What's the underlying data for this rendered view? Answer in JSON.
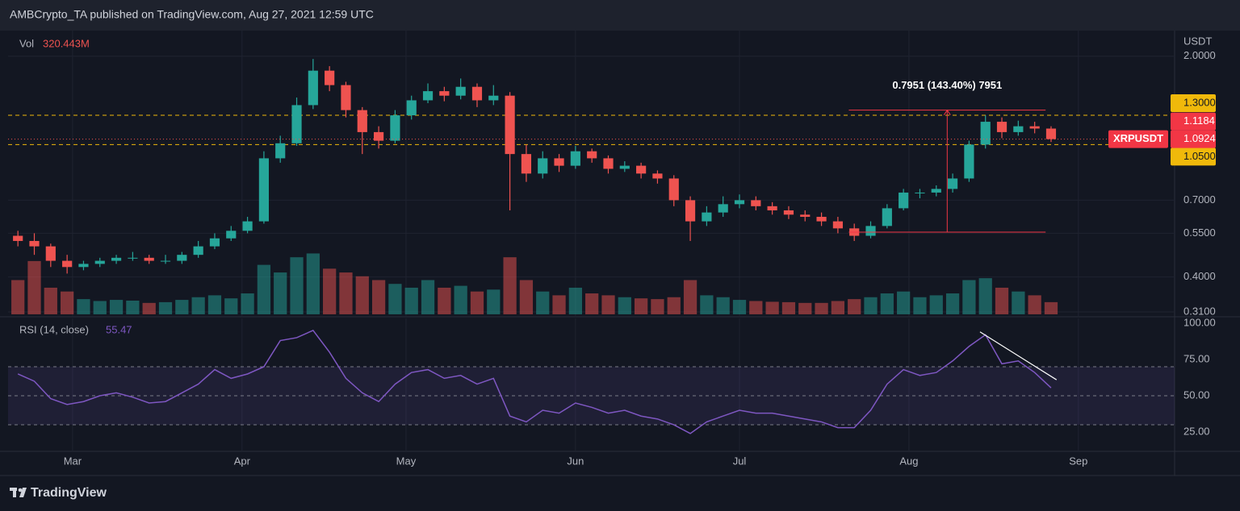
{
  "header": {
    "text": "AMBCrypto_TA published on TradingView.com, Aug 27, 2021 12:59 UTC"
  },
  "footer": {
    "brand": "TradingView"
  },
  "chart_data": {
    "type": "candlestick",
    "symbol": "XRPUSDT",
    "unit": "USDT",
    "log_scale": true,
    "grid": true,
    "x": [
      1,
      4,
      7,
      10,
      13,
      16,
      19,
      22,
      25,
      28,
      31,
      34,
      37,
      40,
      43,
      46,
      49,
      52,
      55,
      58,
      61,
      64,
      67,
      70,
      73,
      76,
      79,
      82,
      85,
      88,
      91,
      94,
      97,
      100,
      103,
      106,
      109,
      112,
      115,
      118,
      121,
      124,
      127,
      130,
      133,
      136,
      139,
      142,
      145,
      148,
      151,
      154,
      157,
      160,
      163,
      166,
      169,
      172,
      175,
      178,
      181,
      184,
      187,
      190
    ],
    "open": [
      0.54,
      0.52,
      0.5,
      0.45,
      0.43,
      0.44,
      0.45,
      0.46,
      0.46,
      0.45,
      0.45,
      0.47,
      0.5,
      0.53,
      0.56,
      0.6,
      0.95,
      1.06,
      1.4,
      1.8,
      1.62,
      1.35,
      1.15,
      1.08,
      1.3,
      1.45,
      1.55,
      1.5,
      1.6,
      1.45,
      1.5,
      0.98,
      0.85,
      0.95,
      0.9,
      1.0,
      0.95,
      0.88,
      0.9,
      0.85,
      0.82,
      0.7,
      0.6,
      0.64,
      0.68,
      0.7,
      0.67,
      0.65,
      0.63,
      0.62,
      0.6,
      0.57,
      0.54,
      0.58,
      0.66,
      0.74,
      0.74,
      0.76,
      0.82,
      1.05,
      1.24,
      1.15,
      1.2,
      1.18
    ],
    "high": [
      0.56,
      0.55,
      0.51,
      0.47,
      0.45,
      0.46,
      0.47,
      0.48,
      0.47,
      0.47,
      0.48,
      0.52,
      0.55,
      0.58,
      0.62,
      1.0,
      1.12,
      1.48,
      1.96,
      1.86,
      1.66,
      1.38,
      1.2,
      1.35,
      1.5,
      1.64,
      1.6,
      1.7,
      1.64,
      1.62,
      1.54,
      1.05,
      1.0,
      0.98,
      1.04,
      1.02,
      0.97,
      0.93,
      0.92,
      0.87,
      0.84,
      0.72,
      0.67,
      0.72,
      0.73,
      0.72,
      0.69,
      0.67,
      0.65,
      0.64,
      0.62,
      0.59,
      0.6,
      0.68,
      0.76,
      0.76,
      0.78,
      0.85,
      1.08,
      1.3,
      1.28,
      1.25,
      1.24,
      1.2
    ],
    "low": [
      0.5,
      0.47,
      0.43,
      0.41,
      0.42,
      0.43,
      0.44,
      0.45,
      0.44,
      0.44,
      0.44,
      0.46,
      0.49,
      0.52,
      0.55,
      0.59,
      0.92,
      1.04,
      1.36,
      1.55,
      1.28,
      0.98,
      1.02,
      1.06,
      1.26,
      1.42,
      1.44,
      1.46,
      1.38,
      1.4,
      0.65,
      0.8,
      0.82,
      0.86,
      0.88,
      0.92,
      0.85,
      0.86,
      0.82,
      0.79,
      0.67,
      0.52,
      0.58,
      0.62,
      0.66,
      0.65,
      0.63,
      0.61,
      0.6,
      0.58,
      0.55,
      0.52,
      0.53,
      0.57,
      0.65,
      0.71,
      0.72,
      0.74,
      0.8,
      1.02,
      1.1,
      1.12,
      1.14,
      1.07
    ],
    "close": [
      0.52,
      0.5,
      0.45,
      0.43,
      0.44,
      0.45,
      0.46,
      0.46,
      0.45,
      0.45,
      0.47,
      0.5,
      0.53,
      0.56,
      0.6,
      0.95,
      1.06,
      1.4,
      1.8,
      1.62,
      1.35,
      1.15,
      1.08,
      1.3,
      1.45,
      1.55,
      1.5,
      1.6,
      1.45,
      1.5,
      0.98,
      0.85,
      0.95,
      0.9,
      1.0,
      0.95,
      0.88,
      0.9,
      0.85,
      0.82,
      0.7,
      0.6,
      0.64,
      0.68,
      0.7,
      0.67,
      0.65,
      0.63,
      0.62,
      0.6,
      0.57,
      0.54,
      0.58,
      0.66,
      0.74,
      0.74,
      0.76,
      0.82,
      1.05,
      1.24,
      1.15,
      1.2,
      1.18,
      1.0924
    ],
    "up_color": "#26a69a",
    "down_color": "#ef5350",
    "xlim": [
      -0.8,
      212.6
    ],
    "xticks": [
      {
        "value": 11,
        "label": "Mar"
      },
      {
        "value": 42,
        "label": "Apr"
      },
      {
        "value": 72,
        "label": "May"
      },
      {
        "value": 103,
        "label": "Jun"
      },
      {
        "value": 133,
        "label": "Jul"
      },
      {
        "value": 164,
        "label": "Aug"
      },
      {
        "value": 195,
        "label": "Sep"
      }
    ],
    "ylim": [
      0.301,
      2.41
    ],
    "yticks": [
      {
        "value": 2,
        "label": "2.0000"
      },
      {
        "value": 0.7,
        "label": "0.7000"
      },
      {
        "value": 0.55,
        "label": "0.5500"
      },
      {
        "value": 0.4,
        "label": "0.4000"
      },
      {
        "value": 0.31,
        "label": "0.3100"
      }
    ],
    "hlines": [
      {
        "value": 1.3,
        "label": "1.3000"
      },
      {
        "value": 1.05,
        "label": "1.0500"
      }
    ],
    "hline_color": "#f0b90b",
    "marker_price": 1.1184,
    "measure": {
      "label": "0.7951 (143.40%) 7951",
      "x": [
        153,
        189
      ],
      "arrow_x": 171,
      "values": [
        0.5545,
        1.3496
      ],
      "color": "#f23645"
    },
    "volume": {
      "name": "Vol",
      "last_label": "320.443M",
      "ylim": [
        0,
        1800
      ],
      "values": [
        900,
        1400,
        700,
        600,
        400,
        350,
        380,
        360,
        300,
        320,
        380,
        450,
        500,
        420,
        550,
        1300,
        1100,
        1500,
        1600,
        1200,
        1100,
        1000,
        900,
        800,
        700,
        900,
        700,
        750,
        600,
        650,
        1500,
        900,
        600,
        500,
        700,
        550,
        500,
        450,
        420,
        400,
        450,
        900,
        500,
        450,
        380,
        350,
        330,
        320,
        300,
        300,
        350,
        400,
        450,
        550,
        600,
        450,
        500,
        550,
        900,
        950,
        700,
        600,
        500,
        320.443
      ]
    },
    "rsi": {
      "name": "RSI (14, close)",
      "color": "#7e57c2",
      "ylim": [
        11.7,
        103.3
      ],
      "yticks": [
        {
          "value": 100,
          "label": "100.00"
        },
        {
          "value": 75,
          "label": "75.00"
        },
        {
          "value": 50,
          "label": "50.00"
        },
        {
          "value": 25,
          "label": "25.00"
        }
      ],
      "levels": [
        70,
        50,
        30
      ],
      "values": [
        65,
        60,
        48,
        44,
        46,
        50,
        52,
        49,
        45,
        46,
        52,
        58,
        68,
        62,
        65,
        70,
        88,
        90,
        95,
        80,
        62,
        52,
        46,
        58,
        66,
        68,
        62,
        64,
        58,
        62,
        36,
        32,
        40,
        38,
        45,
        42,
        38,
        40,
        36,
        34,
        30,
        24,
        32,
        36,
        40,
        38,
        38,
        36,
        34,
        32,
        28,
        28,
        40,
        58,
        68,
        64,
        66,
        74,
        84,
        92,
        72,
        74,
        66,
        55.47
      ],
      "trendline": {
        "x": [
          177,
          191
        ],
        "values": [
          94,
          61
        ]
      }
    }
  }
}
